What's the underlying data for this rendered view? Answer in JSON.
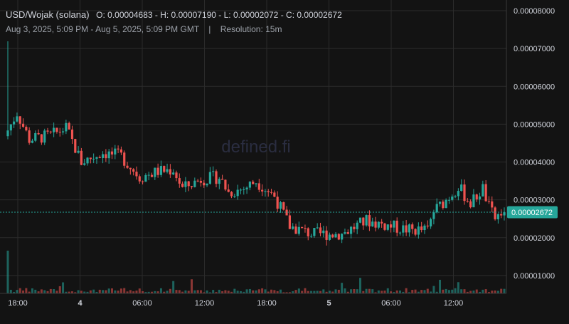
{
  "header": {
    "symbol": "USD/Wojak (solana)",
    "ohlc": "O: 0.00004683 - H: 0.00007190 - L: 0.00002072 - C: 0.00002672",
    "range": "Aug 3, 2025, 5:09 PM - Aug 5, 2025, 5:09 PM GMT",
    "separator": "|",
    "resolution": "Resolution: 15m"
  },
  "watermark": "defined.fi",
  "colors": {
    "background": "#131313",
    "grid": "#2b2b2b",
    "up": "#26a69a",
    "down": "#ef5350",
    "text": "#d1d4dc",
    "subtext": "#9ba0a8",
    "last_price": "#26a69a"
  },
  "chart_data": {
    "type": "candlestick",
    "x_ticks": [
      "18:00",
      "4",
      "06:00",
      "12:00",
      "18:00",
      "5",
      "06:00",
      "12:00"
    ],
    "y_ticks": [
      "0.00008000",
      "0.00007000",
      "0.00006000",
      "0.00005000",
      "0.00004000",
      "0.00003000",
      "0.00002000",
      "0.00001000"
    ],
    "ylim": [
      0,
      8e-05
    ],
    "last_price": 2.672e-05,
    "last_price_label": "0.00002672",
    "open": 4.683e-05,
    "high": 7.19e-05,
    "low": 2.072e-05,
    "close": 2.672e-05
  }
}
